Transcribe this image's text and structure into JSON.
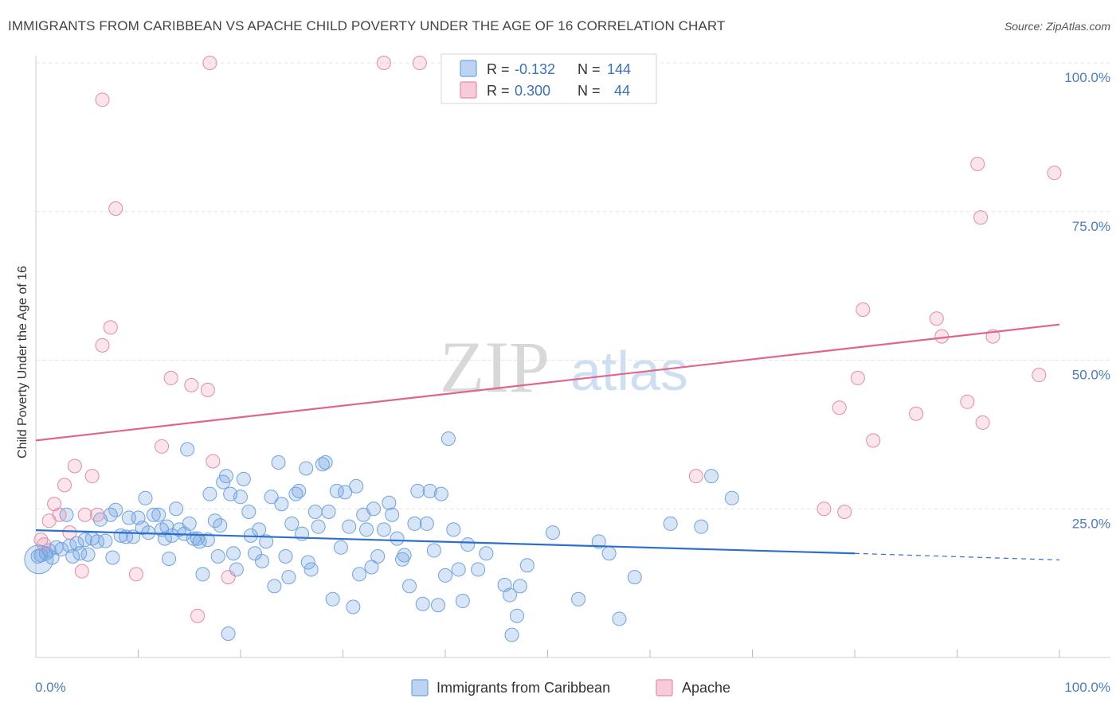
{
  "title": "IMMIGRANTS FROM CARIBBEAN VS APACHE CHILD POVERTY UNDER THE AGE OF 16 CORRELATION CHART",
  "source": "Source: ZipAtlas.com",
  "watermark": {
    "zip": "ZIP",
    "atlas": "atlas"
  },
  "stats": {
    "r_label": "R =",
    "n_label": "N =",
    "rows": [
      {
        "r": "-0.132",
        "n": "144",
        "color": "#6fa3e0"
      },
      {
        "r": "0.300",
        "n": "44",
        "color": "#e889a9"
      }
    ]
  },
  "chart_data": {
    "type": "scatter",
    "title": "IMMIGRANTS FROM CARIBBEAN VS APACHE CHILD POVERTY UNDER THE AGE OF 16 CORRELATION CHART",
    "xlabel": "",
    "ylabel": "Child Poverty Under the Age of 16",
    "xlim": [
      0,
      100
    ],
    "ylim": [
      0,
      100
    ],
    "x_tick_labels": [
      "0.0%",
      "100.0%"
    ],
    "y_tick_labels": [
      "25.0%",
      "50.0%",
      "75.0%",
      "100.0%"
    ],
    "y_ticks": [
      25,
      50,
      75,
      100
    ],
    "grid": true,
    "legend_position": "bottom-center",
    "series": [
      {
        "name": "Immigrants from Caribbean",
        "color": "#6fa3e0",
        "r": -0.132,
        "n": 144,
        "trend": {
          "x0": 0,
          "y0": 21.4,
          "x1": 80,
          "y1": 17.5,
          "dashed_to": 100,
          "dashed_y": 16.4
        },
        "points": [
          [
            0.2,
            17.0
          ],
          [
            0.5,
            17.2
          ],
          [
            1.0,
            17.5
          ],
          [
            1.3,
            18.0
          ],
          [
            1.6,
            16.8
          ],
          [
            2.0,
            18.5
          ],
          [
            2.5,
            18.2
          ],
          [
            3.0,
            24.0
          ],
          [
            3.3,
            18.8
          ],
          [
            3.6,
            17.0
          ],
          [
            4.0,
            19.2
          ],
          [
            4.3,
            17.5
          ],
          [
            4.8,
            19.8
          ],
          [
            5.1,
            17.3
          ],
          [
            5.5,
            20.0
          ],
          [
            6.0,
            19.5
          ],
          [
            6.3,
            23.2
          ],
          [
            6.8,
            19.6
          ],
          [
            7.3,
            24.0
          ],
          [
            7.5,
            16.8
          ],
          [
            7.8,
            24.8
          ],
          [
            8.3,
            20.5
          ],
          [
            8.8,
            20.3
          ],
          [
            9.1,
            23.5
          ],
          [
            9.5,
            20.3
          ],
          [
            10.0,
            23.5
          ],
          [
            10.4,
            21.8
          ],
          [
            10.7,
            26.8
          ],
          [
            11.0,
            21.0
          ],
          [
            11.5,
            24.0
          ],
          [
            12.0,
            24.0
          ],
          [
            12.3,
            21.5
          ],
          [
            12.6,
            20.0
          ],
          [
            12.8,
            22.0
          ],
          [
            13.0,
            16.6
          ],
          [
            13.3,
            20.5
          ],
          [
            13.7,
            25.0
          ],
          [
            14.0,
            21.5
          ],
          [
            14.5,
            20.8
          ],
          [
            14.8,
            35.0
          ],
          [
            15.0,
            22.5
          ],
          [
            15.4,
            20.0
          ],
          [
            15.8,
            20.0
          ],
          [
            16.0,
            19.5
          ],
          [
            16.3,
            14.0
          ],
          [
            16.8,
            19.8
          ],
          [
            17.0,
            27.5
          ],
          [
            17.5,
            23.0
          ],
          [
            17.8,
            17.0
          ],
          [
            18.0,
            22.2
          ],
          [
            18.3,
            29.5
          ],
          [
            18.6,
            30.5
          ],
          [
            18.8,
            4.0
          ],
          [
            19.0,
            27.5
          ],
          [
            19.3,
            17.5
          ],
          [
            19.6,
            14.8
          ],
          [
            20.0,
            27.0
          ],
          [
            20.3,
            30.0
          ],
          [
            20.8,
            24.5
          ],
          [
            21.0,
            20.5
          ],
          [
            21.4,
            17.5
          ],
          [
            21.8,
            21.5
          ],
          [
            22.1,
            16.2
          ],
          [
            22.5,
            19.5
          ],
          [
            23.0,
            27.0
          ],
          [
            23.3,
            12.0
          ],
          [
            23.7,
            32.8
          ],
          [
            24.0,
            25.8
          ],
          [
            24.4,
            17.0
          ],
          [
            24.7,
            13.5
          ],
          [
            25.0,
            22.5
          ],
          [
            25.4,
            27.5
          ],
          [
            25.7,
            28.0
          ],
          [
            26.0,
            20.8
          ],
          [
            26.4,
            31.8
          ],
          [
            26.6,
            16.0
          ],
          [
            26.9,
            14.8
          ],
          [
            27.3,
            24.5
          ],
          [
            27.6,
            22.0
          ],
          [
            28.0,
            32.5
          ],
          [
            28.3,
            32.8
          ],
          [
            28.6,
            24.5
          ],
          [
            29.0,
            9.8
          ],
          [
            29.4,
            28.0
          ],
          [
            29.8,
            18.5
          ],
          [
            30.2,
            27.8
          ],
          [
            30.6,
            22.0
          ],
          [
            31.0,
            8.5
          ],
          [
            31.3,
            28.8
          ],
          [
            31.6,
            14.0
          ],
          [
            32.0,
            24.0
          ],
          [
            32.3,
            21.5
          ],
          [
            32.8,
            15.2
          ],
          [
            33.0,
            25.0
          ],
          [
            33.4,
            17.0
          ],
          [
            34.0,
            21.5
          ],
          [
            34.5,
            26.0
          ],
          [
            34.8,
            24.0
          ],
          [
            35.3,
            20.0
          ],
          [
            35.8,
            16.5
          ],
          [
            36.0,
            17.2
          ],
          [
            36.5,
            12.0
          ],
          [
            37.0,
            22.5
          ],
          [
            37.3,
            28.0
          ],
          [
            37.8,
            9.0
          ],
          [
            38.2,
            22.5
          ],
          [
            38.5,
            28.0
          ],
          [
            38.9,
            18.0
          ],
          [
            39.3,
            8.8
          ],
          [
            39.6,
            27.5
          ],
          [
            40.0,
            13.8
          ],
          [
            40.3,
            36.8
          ],
          [
            40.8,
            21.5
          ],
          [
            41.3,
            14.8
          ],
          [
            41.7,
            9.5
          ],
          [
            42.2,
            19.0
          ],
          [
            43.2,
            14.8
          ],
          [
            44.0,
            17.5
          ],
          [
            45.8,
            12.2
          ],
          [
            46.5,
            3.8
          ],
          [
            46.3,
            10.5
          ],
          [
            47.0,
            7.0
          ],
          [
            47.3,
            12.0
          ],
          [
            48.0,
            15.5
          ],
          [
            50.5,
            21.0
          ],
          [
            53.0,
            9.8
          ],
          [
            55.0,
            19.5
          ],
          [
            56.0,
            17.5
          ],
          [
            57.0,
            6.5
          ],
          [
            58.5,
            13.5
          ],
          [
            62.0,
            22.5
          ],
          [
            65.0,
            22.0
          ],
          [
            66.0,
            30.5
          ],
          [
            68.0,
            26.8
          ]
        ]
      },
      {
        "name": "Apache",
        "color": "#e889a9",
        "r": 0.3,
        "n": 44,
        "trend": {
          "x0": 0,
          "y0": 36.5,
          "x1": 100,
          "y1": 56.0
        },
        "points": [
          [
            0.5,
            19.8
          ],
          [
            0.8,
            19.0
          ],
          [
            1.3,
            23.0
          ],
          [
            1.8,
            25.8
          ],
          [
            2.3,
            24.0
          ],
          [
            2.8,
            29.0
          ],
          [
            3.3,
            21.0
          ],
          [
            3.8,
            32.2
          ],
          [
            4.5,
            14.5
          ],
          [
            4.8,
            24.0
          ],
          [
            5.5,
            30.5
          ],
          [
            6.0,
            24.0
          ],
          [
            6.5,
            52.5
          ],
          [
            6.5,
            93.8
          ],
          [
            7.3,
            55.5
          ],
          [
            7.8,
            75.5
          ],
          [
            9.8,
            14.0
          ],
          [
            12.3,
            35.5
          ],
          [
            13.2,
            47.0
          ],
          [
            15.2,
            45.8
          ],
          [
            15.8,
            7.0
          ],
          [
            16.8,
            45.0
          ],
          [
            17.0,
            100.0
          ],
          [
            17.3,
            33.0
          ],
          [
            18.8,
            13.5
          ],
          [
            34.0,
            100.0
          ],
          [
            37.5,
            100.0
          ],
          [
            64.5,
            30.5
          ],
          [
            77.0,
            25.0
          ],
          [
            78.5,
            42.0
          ],
          [
            79.0,
            24.5
          ],
          [
            80.3,
            47.0
          ],
          [
            80.8,
            58.5
          ],
          [
            81.8,
            36.5
          ],
          [
            86.0,
            41.0
          ],
          [
            88.0,
            57.0
          ],
          [
            88.5,
            54.0
          ],
          [
            91.0,
            43.0
          ],
          [
            92.0,
            83.0
          ],
          [
            92.3,
            74.0
          ],
          [
            92.5,
            39.5
          ],
          [
            93.5,
            54.0
          ],
          [
            98.0,
            47.5
          ],
          [
            99.5,
            81.5
          ]
        ]
      }
    ]
  },
  "legend": [
    {
      "label": "Immigrants from Caribbean",
      "color": "#6fa3e0"
    },
    {
      "label": "Apache",
      "color": "#e889a9"
    }
  ]
}
